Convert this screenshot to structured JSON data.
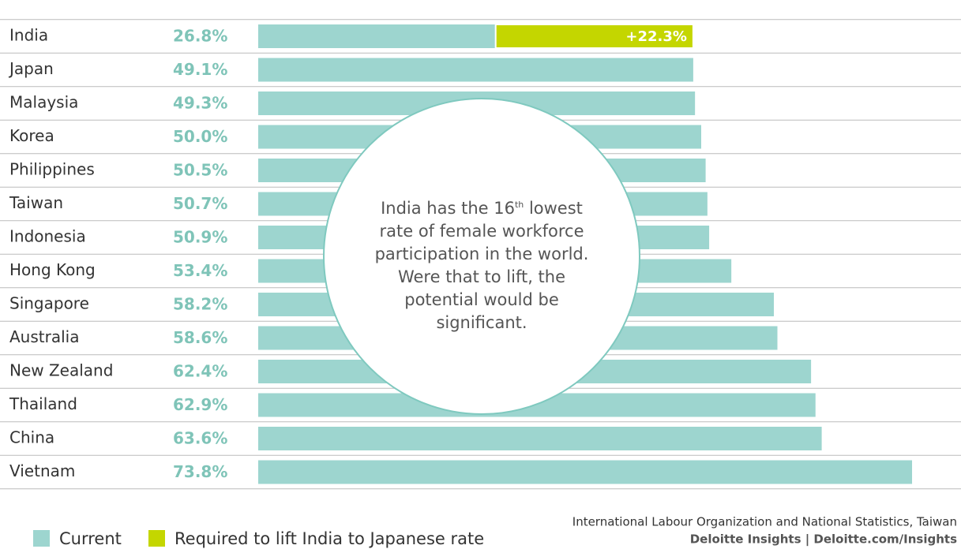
{
  "chart_data": {
    "type": "bar",
    "categories": [
      "India",
      "Japan",
      "Malaysia",
      "Korea",
      "Philippines",
      "Taiwan",
      "Indonesia",
      "Hong Kong",
      "Singapore",
      "Australia",
      "New Zealand",
      "Thailand",
      "China",
      "Vietnam"
    ],
    "series": [
      {
        "name": "Current",
        "color": "#9dd5cf",
        "values": [
          26.8,
          49.1,
          49.3,
          50.0,
          50.5,
          50.7,
          50.9,
          53.4,
          58.2,
          58.6,
          62.4,
          62.9,
          63.6,
          73.8
        ],
        "value_labels": [
          "26.8%",
          "49.1%",
          "49.3%",
          "50.0%",
          "50.5%",
          "50.7%",
          "50.9%",
          "53.4%",
          "58.2%",
          "58.6%",
          "62.4%",
          "62.9%",
          "63.6%",
          "73.8%"
        ]
      },
      {
        "name": "Required to lift India to Japanese rate",
        "color": "#c4d600",
        "values": [
          22.3,
          null,
          null,
          null,
          null,
          null,
          null,
          null,
          null,
          null,
          null,
          null,
          null,
          null
        ],
        "value_labels": [
          "+22.3%",
          null,
          null,
          null,
          null,
          null,
          null,
          null,
          null,
          null,
          null,
          null,
          null,
          null
        ]
      }
    ],
    "annotation": {
      "before": "India has the 16",
      "sup": "th",
      "after": " lowest rate of female workforce participation in the world. Were that to lift, the potential would be significant."
    },
    "source": "International Labour Organization and National Statistics, Taiwan",
    "credit": "Deloitte Insights | Deloitte.com/Insights"
  }
}
